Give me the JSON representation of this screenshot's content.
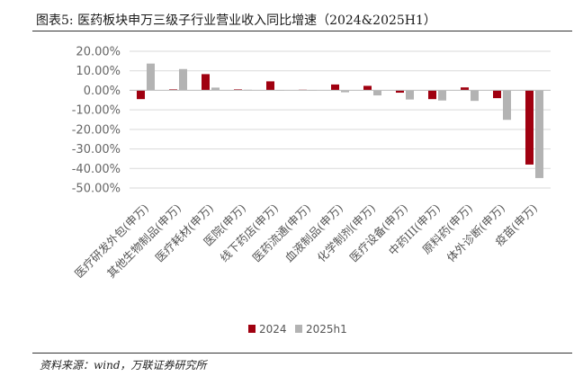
{
  "header": {
    "title": "图表5:  医药板块申万三级子行业营业收入同比增速（2024&2025H1）"
  },
  "footer": {
    "source": "资料来源：wind，万联证券研究所"
  },
  "colors": {
    "series_2024": "#a00010",
    "series_2025h1": "#b3b3b3",
    "grid": "#d9d9d9",
    "axis": "#bfbfbf"
  },
  "chart_data": {
    "type": "bar",
    "categories": [
      "医疗研发外包(申万)",
      "其他生物制品(申万)",
      "医疗耗材(申万)",
      "医院(申万)",
      "线下药店(申万)",
      "医药流通(申万)",
      "血液制品(申万)",
      "化学制剂(申万)",
      "医疗设备(申万)",
      "中药III(申万)",
      "原料药(申万)",
      "体外诊断(申万)",
      "疫苗(申万)"
    ],
    "series": [
      {
        "name": "2024",
        "values": [
          -4.5,
          0.5,
          8.3,
          0.5,
          4.6,
          0.3,
          3.0,
          2.3,
          -1.2,
          -4.5,
          1.5,
          -4.0,
          -38.0
        ]
      },
      {
        "name": "2025h1",
        "values": [
          13.7,
          10.9,
          1.4,
          0.3,
          0.2,
          0.2,
          -1.0,
          -2.6,
          -4.7,
          -5.2,
          -5.4,
          -15.1,
          -44.9
        ]
      }
    ],
    "yticks": [
      "20.00%",
      "10.00%",
      "0.00%",
      "-10.00%",
      "-20.00%",
      "-30.00%",
      "-40.00%",
      "-50.00%"
    ],
    "ylim": [
      -50,
      20
    ],
    "grid": true,
    "legend": "bottom",
    "xlabel": "",
    "ylabel": ""
  }
}
